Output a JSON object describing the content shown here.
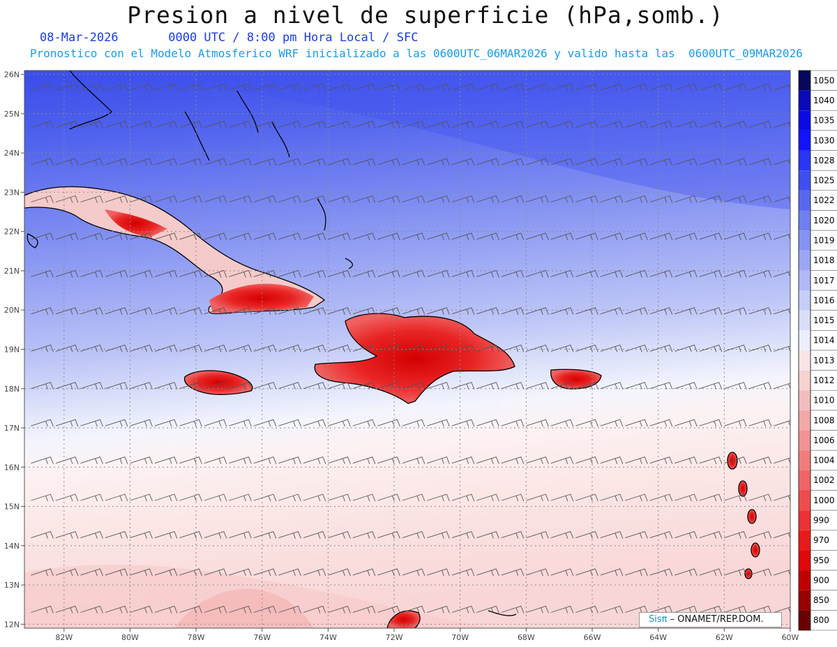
{
  "title": "Presion a nivel de superficie (hPa,somb.)",
  "subtitle_date": "08-Mar-2026",
  "subtitle_time": "0000 UTC / 8:00 pm Hora Local / SFC",
  "info_line": "Pronostico con el Modelo Atmosferico WRF inicializado a las 0600UTC_06MAR2026 y valido hasta las  0600UTC_09MAR2026",
  "credit": {
    "brand": "Sisπ",
    "org": "– ONAMET/REP.DOM."
  },
  "map": {
    "lon_range": [
      -83.2,
      -60
    ],
    "lat_range": [
      11.9,
      26.1
    ],
    "lon_ticks": [
      "82W",
      "80W",
      "78W",
      "76W",
      "74W",
      "72W",
      "70W",
      "68W",
      "66W",
      "64W",
      "62W",
      "60W"
    ],
    "lat_ticks": [
      "12N",
      "13N",
      "14N",
      "15N",
      "16N",
      "17N",
      "18N",
      "19N",
      "20N",
      "21N",
      "22N",
      "23N",
      "24N",
      "25N",
      "26N"
    ],
    "grid": true,
    "wind_barbs": true
  },
  "colorbar": {
    "levels": [
      "1050",
      "1040",
      "1035",
      "1030",
      "1028",
      "1025",
      "1022",
      "1020",
      "1019",
      "1018",
      "1017",
      "1016",
      "1015",
      "1014",
      "1013",
      "1012",
      "1010",
      "1008",
      "1006",
      "1004",
      "1002",
      "1000",
      "990",
      "970",
      "950",
      "900",
      "850",
      "800"
    ],
    "colors": [
      "#06065a",
      "#0a0ab8",
      "#0a0ae6",
      "#1212ff",
      "#2a35f5",
      "#3f4ff0",
      "#5868ee",
      "#6f7ff0",
      "#8593f2",
      "#9ba7f4",
      "#b0b9f6",
      "#c5cdf8",
      "#dadff9",
      "#eceffb",
      "#f9e5e5",
      "#f7d2d2",
      "#f4bdbd",
      "#f3a8a8",
      "#f29393",
      "#f17c7c",
      "#f06565",
      "#ee4c4c",
      "#ec3232",
      "#e81a1a",
      "#e00808",
      "#c00000",
      "#990000",
      "#6a0000"
    ]
  },
  "colors": {
    "ocean_north": "#4a5cf0",
    "ocean_mid": "#a0acf4",
    "ocean_south": "#fbe6e6",
    "land_high": "#e82020",
    "coast": "#000000"
  }
}
